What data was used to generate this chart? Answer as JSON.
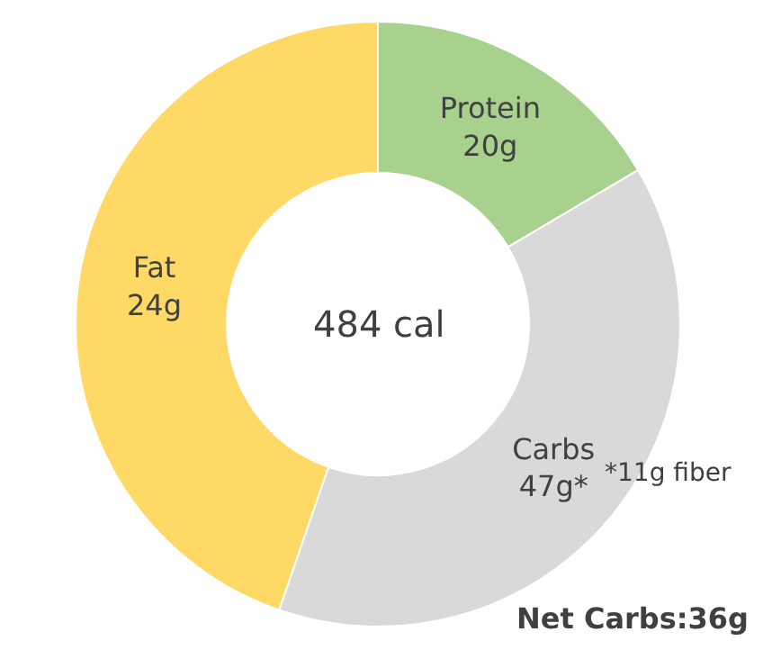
{
  "chart_data": {
    "type": "donut",
    "categories": [
      "Protein\n20g",
      "Carbs\n47g*",
      "Fat\n24g"
    ],
    "values": [
      16.5,
      38.8,
      44.7
    ],
    "colors": [
      "#a9d18e",
      "#d9d9d9",
      "#ffd966"
    ],
    "annotations": [
      "484 cal",
      "*11g fiber",
      "Net Carbs:36g"
    ],
    "legend": false
  }
}
